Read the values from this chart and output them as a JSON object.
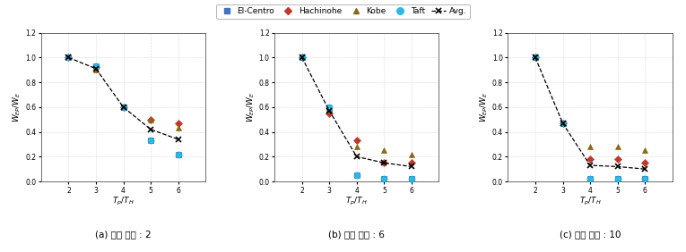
{
  "x_ticks": [
    2,
    3,
    4,
    5,
    6
  ],
  "x_label": "$T_p/T_H$",
  "y_label": "$W_{EP}/W_E$",
  "y_lim": [
    0,
    1.2
  ],
  "x_lim": [
    1,
    7
  ],
  "panels": [
    {
      "title": "(a) 변형 비율 : 2",
      "el_centro": [
        1.0,
        0.93,
        0.6,
        0.33,
        0.22
      ],
      "hachinohe": [
        1.0,
        0.92,
        0.6,
        0.5,
        0.47
      ],
      "kobe": [
        1.0,
        0.9,
        0.6,
        0.5,
        0.43
      ],
      "taft": [
        1.0,
        0.93,
        0.6,
        0.33,
        0.22
      ],
      "avg": [
        1.0,
        0.91,
        0.6,
        0.42,
        0.34
      ]
    },
    {
      "title": "(b) 변형 비율 : 6",
      "el_centro": [
        1.0,
        0.56,
        0.05,
        0.02,
        0.02
      ],
      "hachinohe": [
        1.0,
        0.55,
        0.33,
        0.15,
        0.15
      ],
      "kobe": [
        1.0,
        0.58,
        0.28,
        0.25,
        0.22
      ],
      "taft": [
        1.0,
        0.6,
        0.05,
        0.02,
        0.02
      ],
      "avg": [
        1.0,
        0.57,
        0.2,
        0.15,
        0.12
      ]
    },
    {
      "title": "(c) 변형 비율 : 10",
      "el_centro": [
        1.0,
        0.47,
        0.02,
        0.02,
        0.02
      ],
      "hachinohe": [
        1.0,
        0.47,
        0.18,
        0.18,
        0.15
      ],
      "kobe": [
        1.0,
        0.47,
        0.28,
        0.28,
        0.25
      ],
      "taft": [
        1.0,
        0.47,
        0.02,
        0.02,
        0.02
      ],
      "avg": [
        1.0,
        0.47,
        0.13,
        0.12,
        0.1
      ]
    }
  ],
  "colors": {
    "el_centro": "#4472c4",
    "hachinohe": "#c0392b",
    "kobe": "#8B6914",
    "taft": "#2eb8e6",
    "avg": "#000000"
  },
  "background": "#ffffff",
  "grid_color": "#bbbbbb"
}
